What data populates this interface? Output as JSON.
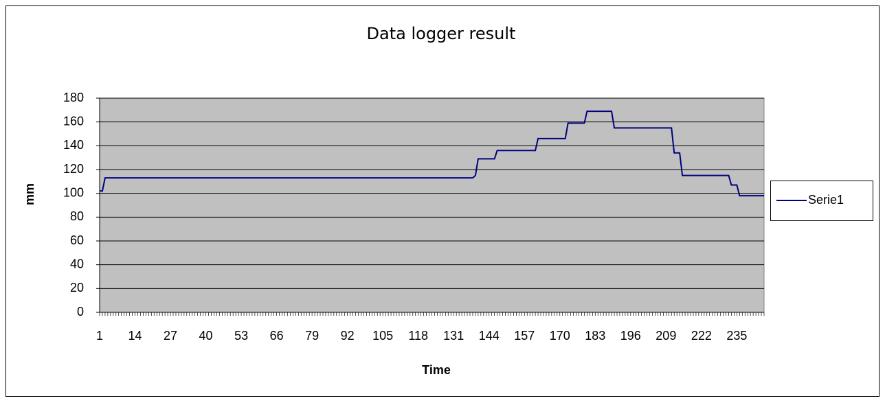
{
  "chart_data": {
    "type": "line",
    "title": "Data logger result",
    "x_label": "Time",
    "y_label": "mm",
    "categories": [
      "1",
      null,
      null,
      null,
      null,
      null,
      null,
      null,
      null,
      null,
      null,
      null,
      null,
      "14",
      null,
      null,
      null,
      null,
      null,
      null,
      null,
      null,
      null,
      null,
      null,
      null,
      "27",
      null,
      null,
      null,
      null,
      null,
      null,
      null,
      null,
      null,
      null,
      null,
      null,
      "40",
      null,
      null,
      null,
      null,
      null,
      null,
      null,
      null,
      null,
      null,
      null,
      null,
      "53",
      null,
      null,
      null,
      null,
      null,
      null,
      null,
      null,
      null,
      null,
      null,
      null,
      "66",
      null,
      null,
      null,
      null,
      null,
      null,
      null,
      null,
      null,
      null,
      null,
      null,
      "79",
      null,
      null,
      null,
      null,
      null,
      null,
      null,
      null,
      null,
      null,
      null,
      null,
      "92",
      null,
      null,
      null,
      null,
      null,
      null,
      null,
      null,
      null,
      null,
      null,
      null,
      "105",
      null,
      null,
      null,
      null,
      null,
      null,
      null,
      null,
      null,
      null,
      null,
      null,
      "118",
      null,
      null,
      null,
      null,
      null,
      null,
      null,
      null,
      null,
      null,
      null,
      null,
      "131",
      null,
      null,
      null,
      null,
      null,
      null,
      null,
      null,
      null,
      null,
      null,
      null,
      "144",
      null,
      null,
      null,
      null,
      null,
      null,
      null,
      null,
      null,
      null,
      null,
      null,
      "157",
      null,
      null,
      null,
      null,
      null,
      null,
      null,
      null,
      null,
      null,
      null,
      null,
      "170",
      null,
      null,
      null,
      null,
      null,
      null,
      null,
      null,
      null,
      null,
      null,
      null,
      "183",
      null,
      null,
      null,
      null,
      null,
      null,
      null,
      null,
      null,
      null,
      null,
      null,
      "196",
      null,
      null,
      null,
      null,
      null,
      null,
      null,
      null,
      null,
      null,
      null,
      null,
      "209",
      null,
      null,
      null,
      null,
      null,
      null,
      null,
      null,
      null,
      null,
      null,
      null,
      "222",
      null,
      null,
      null,
      null,
      null,
      null,
      null,
      null,
      null,
      null,
      null,
      null,
      "235",
      null,
      null,
      null,
      null,
      null,
      null,
      null,
      null,
      null,
      null
    ],
    "series": [
      {
        "name": "Serie1",
        "color": "#000080",
        "values": [
          102,
          102,
          113,
          113,
          113,
          113,
          113,
          113,
          113,
          113,
          113,
          113,
          113,
          113,
          113,
          113,
          113,
          113,
          113,
          113,
          113,
          113,
          113,
          113,
          113,
          113,
          113,
          113,
          113,
          113,
          113,
          113,
          113,
          113,
          113,
          113,
          113,
          113,
          113,
          113,
          113,
          113,
          113,
          113,
          113,
          113,
          113,
          113,
          113,
          113,
          113,
          113,
          113,
          113,
          113,
          113,
          113,
          113,
          113,
          113,
          113,
          113,
          113,
          113,
          113,
          113,
          113,
          113,
          113,
          113,
          113,
          113,
          113,
          113,
          113,
          113,
          113,
          113,
          113,
          113,
          113,
          113,
          113,
          113,
          113,
          113,
          113,
          113,
          113,
          113,
          113,
          113,
          113,
          113,
          113,
          113,
          113,
          113,
          113,
          113,
          113,
          113,
          113,
          113,
          113,
          113,
          113,
          113,
          113,
          113,
          113,
          113,
          113,
          113,
          113,
          113,
          113,
          113,
          113,
          113,
          113,
          113,
          113,
          113,
          113,
          113,
          113,
          113,
          113,
          113,
          113,
          113,
          113,
          113,
          113,
          113,
          113,
          113,
          115,
          129,
          129,
          129,
          129,
          129,
          129,
          129,
          136,
          136,
          136,
          136,
          136,
          136,
          136,
          136,
          136,
          136,
          136,
          136,
          136,
          136,
          136,
          146,
          146,
          146,
          146,
          146,
          146,
          146,
          146,
          146,
          146,
          146,
          159,
          159,
          159,
          159,
          159,
          159,
          159,
          169,
          169,
          169,
          169,
          169,
          169,
          169,
          169,
          169,
          169,
          155,
          155,
          155,
          155,
          155,
          155,
          155,
          155,
          155,
          155,
          155,
          155,
          155,
          155,
          155,
          155,
          155,
          155,
          155,
          155,
          155,
          155,
          134,
          134,
          134,
          115,
          115,
          115,
          115,
          115,
          115,
          115,
          115,
          115,
          115,
          115,
          115,
          115,
          115,
          115,
          115,
          115,
          115,
          107,
          107,
          107,
          98,
          98,
          98,
          98,
          98,
          98,
          98,
          98,
          98,
          98
        ]
      }
    ],
    "ylim": [
      0,
      180
    ],
    "yticks": [
      0,
      20,
      40,
      60,
      80,
      100,
      120,
      140,
      160,
      180
    ],
    "grid": true,
    "legend": "right"
  }
}
